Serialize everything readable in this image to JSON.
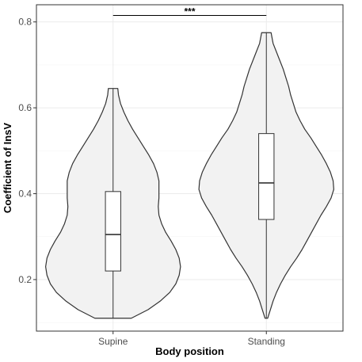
{
  "chart_data": {
    "type": "violin",
    "xlabel": "Body position",
    "ylabel": "Coefficient of InsV",
    "categories": [
      "Supine",
      "Standing"
    ],
    "ylim": [
      0.08,
      0.84
    ],
    "yticks": [
      0.2,
      0.4,
      0.6,
      0.8
    ],
    "ytick_labels": [
      "0.2",
      "0.4",
      "0.6",
      "0.8"
    ],
    "grid": true,
    "colors": {
      "fill": "#f2f2f2",
      "stroke": "#333333",
      "grid_major": "#ebebeb",
      "grid_minor": "#f5f5f5",
      "border": "#333333"
    },
    "series": [
      {
        "category": "Supine",
        "box": {
          "min": 0.11,
          "q1": 0.22,
          "median": 0.305,
          "q3": 0.405,
          "max": 0.645
        },
        "density": [
          [
            0.11,
            0.27
          ],
          [
            0.13,
            0.52
          ],
          [
            0.15,
            0.7
          ],
          [
            0.17,
            0.84
          ],
          [
            0.19,
            0.93
          ],
          [
            0.21,
            0.98
          ],
          [
            0.23,
            1.0
          ],
          [
            0.25,
            0.98
          ],
          [
            0.27,
            0.93
          ],
          [
            0.29,
            0.86
          ],
          [
            0.31,
            0.78
          ],
          [
            0.33,
            0.72
          ],
          [
            0.35,
            0.68
          ],
          [
            0.37,
            0.67
          ],
          [
            0.39,
            0.68
          ],
          [
            0.41,
            0.68
          ],
          [
            0.43,
            0.68
          ],
          [
            0.45,
            0.65
          ],
          [
            0.47,
            0.6
          ],
          [
            0.49,
            0.53
          ],
          [
            0.51,
            0.45
          ],
          [
            0.53,
            0.37
          ],
          [
            0.55,
            0.29
          ],
          [
            0.57,
            0.22
          ],
          [
            0.59,
            0.16
          ],
          [
            0.61,
            0.11
          ],
          [
            0.63,
            0.08
          ],
          [
            0.645,
            0.07
          ]
        ]
      },
      {
        "category": "Standing",
        "box": {
          "min": 0.11,
          "q1": 0.34,
          "median": 0.425,
          "q3": 0.54,
          "max": 0.775
        },
        "density": [
          [
            0.11,
            0.02
          ],
          [
            0.13,
            0.06
          ],
          [
            0.15,
            0.1
          ],
          [
            0.17,
            0.15
          ],
          [
            0.19,
            0.21
          ],
          [
            0.21,
            0.28
          ],
          [
            0.23,
            0.36
          ],
          [
            0.25,
            0.45
          ],
          [
            0.27,
            0.53
          ],
          [
            0.29,
            0.6
          ],
          [
            0.31,
            0.67
          ],
          [
            0.33,
            0.74
          ],
          [
            0.35,
            0.81
          ],
          [
            0.37,
            0.89
          ],
          [
            0.39,
            0.96
          ],
          [
            0.41,
            1.0
          ],
          [
            0.43,
            0.99
          ],
          [
            0.45,
            0.95
          ],
          [
            0.47,
            0.89
          ],
          [
            0.49,
            0.82
          ],
          [
            0.51,
            0.74
          ],
          [
            0.53,
            0.66
          ],
          [
            0.55,
            0.57
          ],
          [
            0.57,
            0.5
          ],
          [
            0.59,
            0.44
          ],
          [
            0.61,
            0.4
          ],
          [
            0.63,
            0.36
          ],
          [
            0.65,
            0.33
          ],
          [
            0.67,
            0.29
          ],
          [
            0.69,
            0.25
          ],
          [
            0.71,
            0.2
          ],
          [
            0.73,
            0.15
          ],
          [
            0.75,
            0.1
          ],
          [
            0.775,
            0.07
          ]
        ]
      }
    ],
    "annotations": [
      {
        "type": "significance",
        "from": "Supine",
        "to": "Standing",
        "y": 0.815,
        "text": "***"
      }
    ]
  }
}
